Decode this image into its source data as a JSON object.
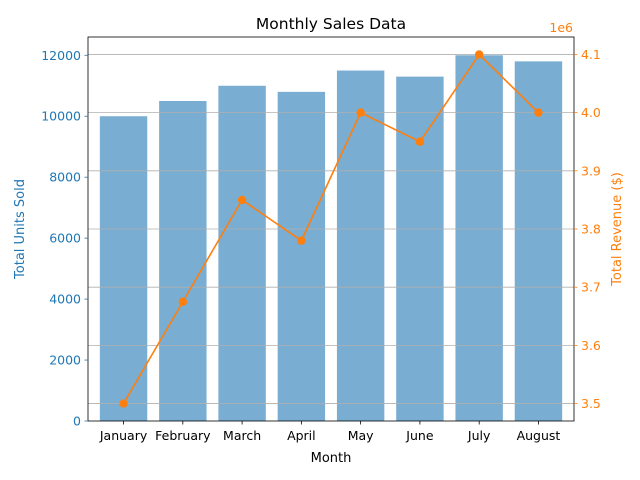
{
  "chart_data": {
    "type": "bar",
    "title": "Monthly Sales Data",
    "xlabel": "Month",
    "categories": [
      "January",
      "February",
      "March",
      "April",
      "May",
      "June",
      "July",
      "August"
    ],
    "series": [
      {
        "name": "Total Units Sold",
        "type": "bar",
        "axis": "left",
        "color": "#1f77b4",
        "values": [
          10000,
          10500,
          11000,
          10800,
          11500,
          11300,
          12000,
          11800
        ]
      },
      {
        "name": "Total Revenue ($)",
        "type": "line",
        "axis": "right",
        "color": "#ff7f0e",
        "values": [
          3500000,
          3675000,
          3850000,
          3780000,
          4000000,
          3950000,
          4100000,
          4000000
        ]
      }
    ],
    "y_left": {
      "label": "Total Units Sold",
      "ylim": [
        0,
        12600
      ],
      "ticks": [
        0,
        2000,
        4000,
        6000,
        8000,
        10000,
        12000
      ],
      "color": "#1f77b4"
    },
    "y_right": {
      "label": "Total Revenue ($)",
      "ylim": [
        3470000,
        4130000
      ],
      "ticks": [
        3.5,
        3.6,
        3.7,
        3.8,
        3.9,
        4.0,
        4.1
      ],
      "tick_scale": 1000000,
      "offset_label": "1e6",
      "color": "#ff7f0e"
    },
    "grid": "horizontal (right axis ticks)"
  }
}
